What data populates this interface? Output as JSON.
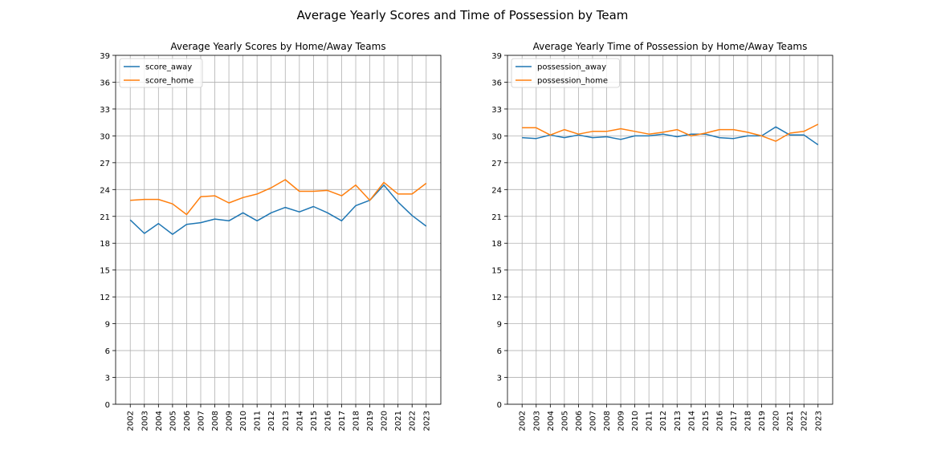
{
  "figure": {
    "title": "Average Yearly Scores and Time of Possession by Team"
  },
  "chart_data": [
    {
      "type": "line",
      "title": "Average Yearly Scores by Home/Away Teams",
      "xlabel": "",
      "ylabel": "",
      "x": [
        "2002",
        "2003",
        "2004",
        "2005",
        "2006",
        "2007",
        "2008",
        "2009",
        "2010",
        "2011",
        "2012",
        "2013",
        "2014",
        "2015",
        "2016",
        "2017",
        "2018",
        "2019",
        "2020",
        "2021",
        "2022",
        "2023"
      ],
      "ylim": [
        0,
        39
      ],
      "yticks": [
        "0",
        "3",
        "6",
        "9",
        "12",
        "15",
        "18",
        "21",
        "24",
        "27",
        "30",
        "33",
        "36",
        "39"
      ],
      "grid": true,
      "legend_position": "upper-left",
      "series": [
        {
          "name": "score_away",
          "color": "#1f77b4",
          "values": [
            20.6,
            19.1,
            20.2,
            19.0,
            20.1,
            20.3,
            20.7,
            20.5,
            21.4,
            20.5,
            21.4,
            22.0,
            21.5,
            22.1,
            21.4,
            20.5,
            22.2,
            22.8,
            24.5,
            22.6,
            21.1,
            19.9
          ]
        },
        {
          "name": "score_home",
          "color": "#ff7f0e",
          "values": [
            22.8,
            22.9,
            22.9,
            22.4,
            21.2,
            23.2,
            23.3,
            22.5,
            23.1,
            23.5,
            24.2,
            25.1,
            23.8,
            23.8,
            23.9,
            23.3,
            24.5,
            22.8,
            24.8,
            23.5,
            23.5,
            24.7
          ]
        }
      ]
    },
    {
      "type": "line",
      "title": "Average Yearly Time of Possession by Home/Away Teams",
      "xlabel": "",
      "ylabel": "",
      "x": [
        "2002",
        "2003",
        "2004",
        "2005",
        "2006",
        "2007",
        "2008",
        "2009",
        "2010",
        "2011",
        "2012",
        "2013",
        "2014",
        "2015",
        "2016",
        "2017",
        "2018",
        "2019",
        "2020",
        "2021",
        "2022",
        "2023"
      ],
      "ylim": [
        0,
        39
      ],
      "yticks": [
        "0",
        "3",
        "6",
        "9",
        "12",
        "15",
        "18",
        "21",
        "24",
        "27",
        "30",
        "33",
        "36",
        "39"
      ],
      "grid": true,
      "legend_position": "upper-left",
      "series": [
        {
          "name": "possession_away",
          "color": "#1f77b4",
          "values": [
            29.8,
            29.7,
            30.1,
            29.8,
            30.1,
            29.8,
            29.9,
            29.6,
            30.0,
            30.0,
            30.2,
            29.9,
            30.2,
            30.2,
            29.8,
            29.7,
            30.0,
            30.0,
            31.0,
            30.1,
            30.1,
            29.0
          ]
        },
        {
          "name": "possession_home",
          "color": "#ff7f0e",
          "values": [
            30.9,
            30.9,
            30.1,
            30.7,
            30.2,
            30.5,
            30.5,
            30.8,
            30.5,
            30.2,
            30.4,
            30.7,
            30.0,
            30.3,
            30.7,
            30.7,
            30.4,
            30.0,
            29.4,
            30.3,
            30.5,
            31.3
          ]
        }
      ]
    }
  ]
}
